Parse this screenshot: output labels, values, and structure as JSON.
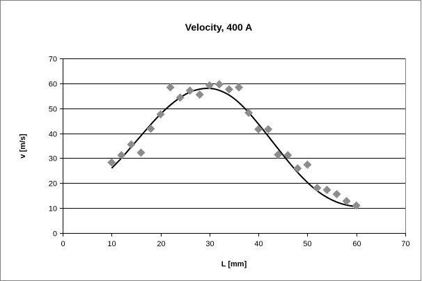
{
  "chart_data": {
    "type": "scatter",
    "title": "Velocity, 400 A",
    "xlabel": "L [mm]",
    "ylabel": "v [m/s]",
    "xlim": [
      0,
      70
    ],
    "ylim": [
      0,
      70
    ],
    "xticks": [
      0,
      10,
      20,
      30,
      40,
      50,
      60,
      70
    ],
    "yticks": [
      0,
      10,
      20,
      30,
      40,
      50,
      60,
      70
    ],
    "grid": "horizontal",
    "legend": "none",
    "colors": {
      "points": "#8c8c8c",
      "curve": "#000000",
      "grid": "#000000",
      "frame": "#808080"
    },
    "series": [
      {
        "type": "scatter",
        "marker": "diamond",
        "points": [
          [
            10,
            28.3
          ],
          [
            12,
            31.2
          ],
          [
            14,
            35.5
          ],
          [
            16,
            32.2
          ],
          [
            18,
            41.8
          ],
          [
            20,
            47.6
          ],
          [
            22,
            58.4
          ],
          [
            24,
            54.3
          ],
          [
            26,
            57.1
          ],
          [
            28,
            55.5
          ],
          [
            30,
            59.2
          ],
          [
            32,
            59.6
          ],
          [
            34,
            57.6
          ],
          [
            36,
            58.4
          ],
          [
            38,
            48.2
          ],
          [
            40,
            41.6
          ],
          [
            42,
            41.6
          ],
          [
            44,
            31.4
          ],
          [
            46,
            31.2
          ],
          [
            48,
            25.9
          ],
          [
            50,
            27.4
          ],
          [
            52,
            18.1
          ],
          [
            54,
            17.3
          ],
          [
            56,
            15.6
          ],
          [
            58,
            12.8
          ],
          [
            60,
            11.0
          ]
        ]
      },
      {
        "type": "line",
        "style": "smooth trend",
        "points": [
          [
            10,
            26.0
          ],
          [
            12,
            30.0
          ],
          [
            14,
            34.5
          ],
          [
            16,
            39.0
          ],
          [
            18,
            43.5
          ],
          [
            20,
            47.7
          ],
          [
            22,
            51.3
          ],
          [
            24,
            54.3
          ],
          [
            26,
            56.5
          ],
          [
            28,
            57.7
          ],
          [
            30,
            58.0
          ],
          [
            32,
            57.2
          ],
          [
            34,
            55.3
          ],
          [
            36,
            52.3
          ],
          [
            38,
            48.3
          ],
          [
            40,
            43.7
          ],
          [
            42,
            38.8
          ],
          [
            44,
            33.8
          ],
          [
            46,
            28.9
          ],
          [
            48,
            24.3
          ],
          [
            50,
            20.3
          ],
          [
            52,
            16.9
          ],
          [
            54,
            14.3
          ],
          [
            56,
            12.4
          ],
          [
            58,
            11.2
          ],
          [
            60,
            10.6
          ]
        ]
      }
    ]
  }
}
